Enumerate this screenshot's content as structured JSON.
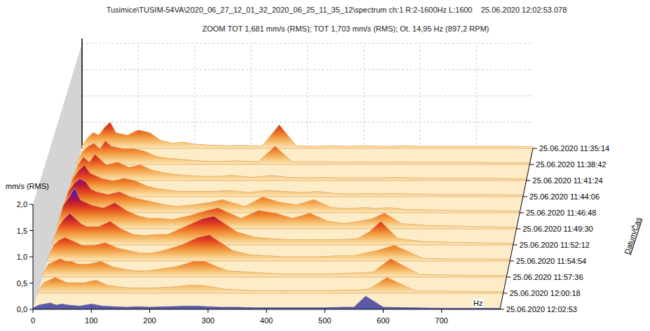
{
  "chart_data": {
    "type": "waterfall",
    "title": "Tusimice\\TUSIM-54VA\\2020_06_27_12_01_32_2020_06_25_11_35_12\\spectrum ch:1 R:2-1600Hz L:1600    25.06.2020 12:02:53.078",
    "subtitle": "ZOOM TOT 1,681 mm/s (RMS); TOT 1,703 mm/s (RMS); Ot. 14,95 Hz (897,2 RPM)",
    "y_label": "mm/s (RMS)",
    "x_label": "Hz",
    "z_label": "Datum/Čas",
    "xlim": [
      0,
      800
    ],
    "xticks": [
      0,
      100,
      200,
      300,
      400,
      500,
      600,
      700
    ],
    "ylim": [
      0,
      2
    ],
    "yticks": [
      {
        "value": 0,
        "label": "0,0"
      },
      {
        "value": 0.5,
        "label": "0,5"
      },
      {
        "value": 1,
        "label": "1,0"
      },
      {
        "value": 1.5,
        "label": "1,5"
      },
      {
        "value": 2,
        "label": "2,0"
      }
    ],
    "grid": true,
    "x": [
      0,
      10,
      20,
      30,
      40,
      50,
      60,
      80,
      100,
      120,
      140,
      160,
      180,
      200,
      230,
      260,
      280,
      300,
      320,
      350,
      380,
      410,
      440,
      470,
      500,
      530,
      550,
      570,
      600,
      650,
      700,
      750,
      800
    ],
    "series": [
      {
        "name": "25.06.2020 11:35:14",
        "values": [
          0.05,
          0.2,
          0.3,
          0.25,
          0.4,
          0.5,
          0.3,
          0.25,
          0.35,
          0.3,
          0.15,
          0.1,
          0.12,
          0.08,
          0.06,
          0.05,
          0.06,
          0.05,
          0.05,
          0.45,
          0.05,
          0.04,
          0.05,
          0.04,
          0.05,
          0.04,
          0.04,
          0.05,
          0.04,
          0.04,
          0.04,
          0.04,
          0.03
        ]
      },
      {
        "name": "25.06.2020 11:38:42",
        "values": [
          0.05,
          0.25,
          0.35,
          0.4,
          0.3,
          0.45,
          0.35,
          0.3,
          0.3,
          0.25,
          0.15,
          0.12,
          0.1,
          0.08,
          0.06,
          0.06,
          0.07,
          0.06,
          0.05,
          0.35,
          0.05,
          0.05,
          0.05,
          0.04,
          0.05,
          0.04,
          0.04,
          0.05,
          0.04,
          0.04,
          0.04,
          0.03,
          0.03
        ]
      },
      {
        "name": "25.06.2020 11:41:24",
        "values": [
          0.05,
          0.3,
          0.45,
          0.35,
          0.5,
          0.4,
          0.3,
          0.35,
          0.25,
          0.3,
          0.2,
          0.15,
          0.12,
          0.1,
          0.08,
          0.08,
          0.1,
          0.08,
          0.06,
          0.1,
          0.06,
          0.05,
          0.06,
          0.05,
          0.05,
          0.05,
          0.05,
          0.06,
          0.05,
          0.04,
          0.04,
          0.04,
          0.03
        ]
      },
      {
        "name": "25.06.2020 11:44:06",
        "values": [
          0.05,
          0.35,
          0.5,
          0.6,
          0.45,
          0.4,
          0.35,
          0.3,
          0.35,
          0.3,
          0.2,
          0.15,
          0.12,
          0.1,
          0.1,
          0.1,
          0.12,
          0.1,
          0.08,
          0.12,
          0.1,
          0.08,
          0.1,
          0.06,
          0.05,
          0.06,
          0.05,
          0.06,
          0.05,
          0.04,
          0.04,
          0.04,
          0.03
        ]
      },
      {
        "name": "25.06.2020 11:46:48",
        "values": [
          0.05,
          0.4,
          0.55,
          0.65,
          0.6,
          0.45,
          0.4,
          0.35,
          0.4,
          0.3,
          0.25,
          0.2,
          0.15,
          0.12,
          0.15,
          0.2,
          0.25,
          0.18,
          0.12,
          0.3,
          0.2,
          0.15,
          0.25,
          0.1,
          0.08,
          0.1,
          0.08,
          0.1,
          0.06,
          0.05,
          0.04,
          0.04,
          0.03
        ]
      },
      {
        "name": "25.06.2020 11:49:30",
        "values": [
          0.06,
          0.45,
          0.6,
          0.78,
          0.55,
          0.5,
          0.45,
          0.4,
          0.5,
          0.35,
          0.25,
          0.2,
          0.2,
          0.18,
          0.25,
          0.35,
          0.4,
          0.3,
          0.2,
          0.35,
          0.3,
          0.2,
          0.3,
          0.15,
          0.1,
          0.15,
          0.2,
          0.3,
          0.1,
          0.06,
          0.05,
          0.04,
          0.03
        ]
      },
      {
        "name": "25.06.2020 11:52:12",
        "values": [
          0.05,
          0.35,
          0.5,
          0.6,
          0.5,
          0.4,
          0.35,
          0.35,
          0.45,
          0.3,
          0.2,
          0.18,
          0.2,
          0.2,
          0.35,
          0.5,
          0.55,
          0.4,
          0.25,
          0.15,
          0.12,
          0.1,
          0.1,
          0.1,
          0.1,
          0.12,
          0.25,
          0.45,
          0.12,
          0.06,
          0.05,
          0.04,
          0.03
        ]
      },
      {
        "name": "25.06.2020 11:54:54",
        "values": [
          0.05,
          0.3,
          0.4,
          0.45,
          0.4,
          0.35,
          0.3,
          0.3,
          0.35,
          0.25,
          0.2,
          0.15,
          0.15,
          0.2,
          0.3,
          0.45,
          0.5,
          0.35,
          0.2,
          0.12,
          0.1,
          0.08,
          0.08,
          0.08,
          0.1,
          0.1,
          0.15,
          0.2,
          0.3,
          0.05,
          0.04,
          0.04,
          0.03
        ]
      },
      {
        "name": "25.06.2020 11:57:36",
        "values": [
          0.05,
          0.25,
          0.3,
          0.35,
          0.3,
          0.3,
          0.25,
          0.25,
          0.3,
          0.2,
          0.15,
          0.12,
          0.12,
          0.15,
          0.2,
          0.3,
          0.3,
          0.2,
          0.12,
          0.1,
          0.08,
          0.06,
          0.06,
          0.06,
          0.06,
          0.08,
          0.08,
          0.1,
          0.35,
          0.05,
          0.04,
          0.03,
          0.03
        ]
      },
      {
        "name": "25.06.2020 12:00:18",
        "values": [
          0.04,
          0.2,
          0.25,
          0.3,
          0.25,
          0.2,
          0.2,
          0.2,
          0.25,
          0.15,
          0.12,
          0.1,
          0.1,
          0.1,
          0.12,
          0.15,
          0.15,
          0.12,
          0.08,
          0.06,
          0.05,
          0.05,
          0.05,
          0.05,
          0.05,
          0.06,
          0.06,
          0.08,
          0.3,
          0.04,
          0.04,
          0.03,
          0.03
        ]
      },
      {
        "name": "25.06.2020 12:02:53",
        "color": "#5a5aa8",
        "values": [
          0.02,
          0.08,
          0.1,
          0.12,
          0.08,
          0.1,
          0.08,
          0.06,
          0.1,
          0.06,
          0.05,
          0.04,
          0.05,
          0.04,
          0.05,
          0.06,
          0.06,
          0.05,
          0.04,
          0.04,
          0.03,
          0.03,
          0.03,
          0.03,
          0.03,
          0.04,
          0.04,
          0.25,
          0.04,
          0.03,
          0.02,
          0.02,
          0.02
        ]
      }
    ]
  }
}
